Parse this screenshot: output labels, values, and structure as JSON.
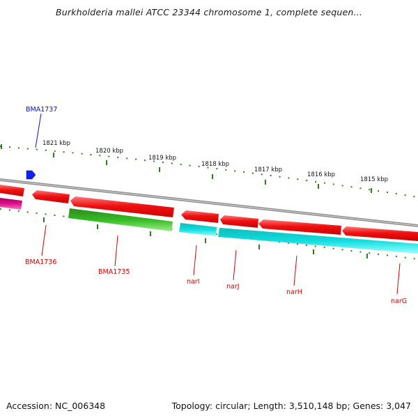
{
  "title": "Burkholderia mallei ATCC 23344 chromosome 1, complete sequen...",
  "accession": "Accession: NC_006348",
  "summary": "Topology: circular; Length: 3,510,148 bp; Genes: 3,047",
  "colors": {
    "backbone": "#8a8a8a",
    "ticks": "#2d7d1f",
    "label_forward": "#1010c0",
    "label_reverse": "#cc0000",
    "red": "#ee1111",
    "green": "#33bb22",
    "cyan": "#11dddd",
    "magenta": "#dd1188",
    "blue": "#1122ee"
  },
  "ticks": [
    {
      "label": "1821 kbp"
    },
    {
      "label": "1820 kbp"
    },
    {
      "label": "1819 kbp"
    },
    {
      "label": "1818 kbp"
    },
    {
      "label": "1817 kbp"
    },
    {
      "label": "1816 kbp"
    },
    {
      "label": "1815 kbp"
    }
  ],
  "gene_labels": [
    {
      "name": "BMA1737",
      "color": "label_forward"
    },
    {
      "name": "BMA1736",
      "color": "label_reverse"
    },
    {
      "name": "BMA1735",
      "color": "label_reverse"
    },
    {
      "name": "narI",
      "color": "label_reverse"
    },
    {
      "name": "narJ",
      "color": "label_reverse"
    },
    {
      "name": "narH",
      "color": "label_reverse"
    },
    {
      "name": "narG",
      "color": "label_reverse"
    }
  ]
}
